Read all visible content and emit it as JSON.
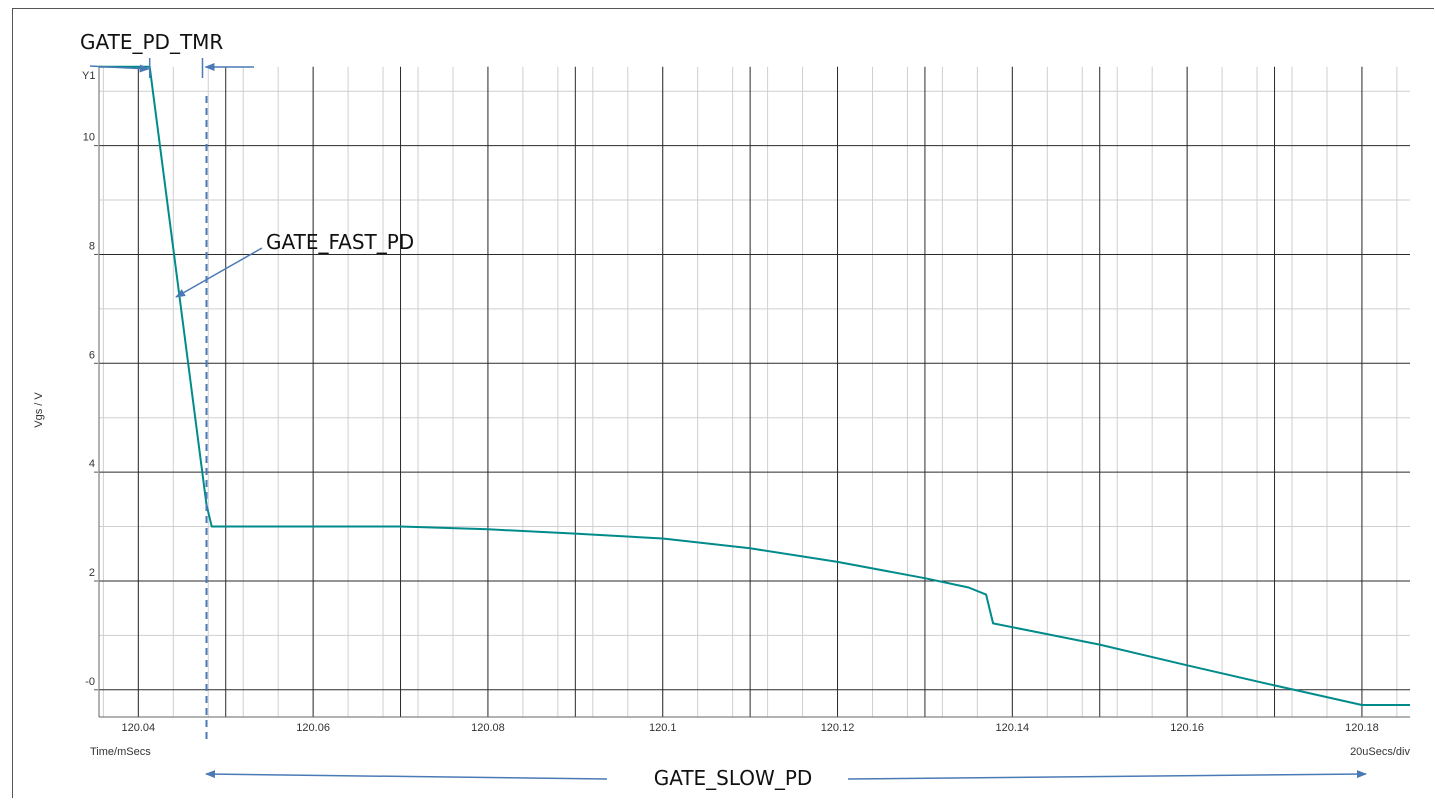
{
  "chart_data": {
    "type": "line",
    "title": "",
    "xlabel": "Time/mSecs",
    "ylabel": "Vgs / V",
    "y_axis_name": "Y1",
    "scale_label": "20uSecs/div",
    "xlim": [
      120.0355,
      120.1855
    ],
    "ylim": [
      -0.5,
      11.5
    ],
    "x_ticks": [
      120.04,
      120.06,
      120.08,
      120.1,
      120.12,
      120.14,
      120.16,
      120.18
    ],
    "x_tick_labels": [
      "120.04",
      "120.06",
      "120.08",
      "120.1",
      "120.12",
      "120.14",
      "120.16",
      "120.18"
    ],
    "y_ticks": [
      0,
      2,
      4,
      6,
      8,
      10
    ],
    "y_tick_labels": [
      "-0",
      "2",
      "4",
      "6",
      "8",
      "10"
    ],
    "grid": true,
    "series": [
      {
        "color": "#008b8b",
        "x": [
          120.0355,
          120.0413,
          120.0478,
          120.0484,
          120.06,
          120.07,
          120.08,
          120.09,
          120.1,
          120.11,
          120.12,
          120.13,
          120.135,
          120.137,
          120.1378,
          120.15,
          120.16,
          120.17,
          120.18,
          120.1855
        ],
        "y": [
          11.45,
          11.45,
          3.4,
          3.0,
          3.0,
          3.0,
          2.95,
          2.87,
          2.78,
          2.6,
          2.35,
          2.05,
          1.88,
          1.75,
          1.22,
          0.83,
          0.45,
          0.08,
          -0.28,
          -0.28
        ]
      }
    ],
    "annotations": {
      "pd_tmr": "GATE_PD_TMR",
      "fast_pd": "GATE_FAST_PD",
      "slow_pd": "GATE_SLOW_PD"
    },
    "marker_x": 120.0478
  }
}
